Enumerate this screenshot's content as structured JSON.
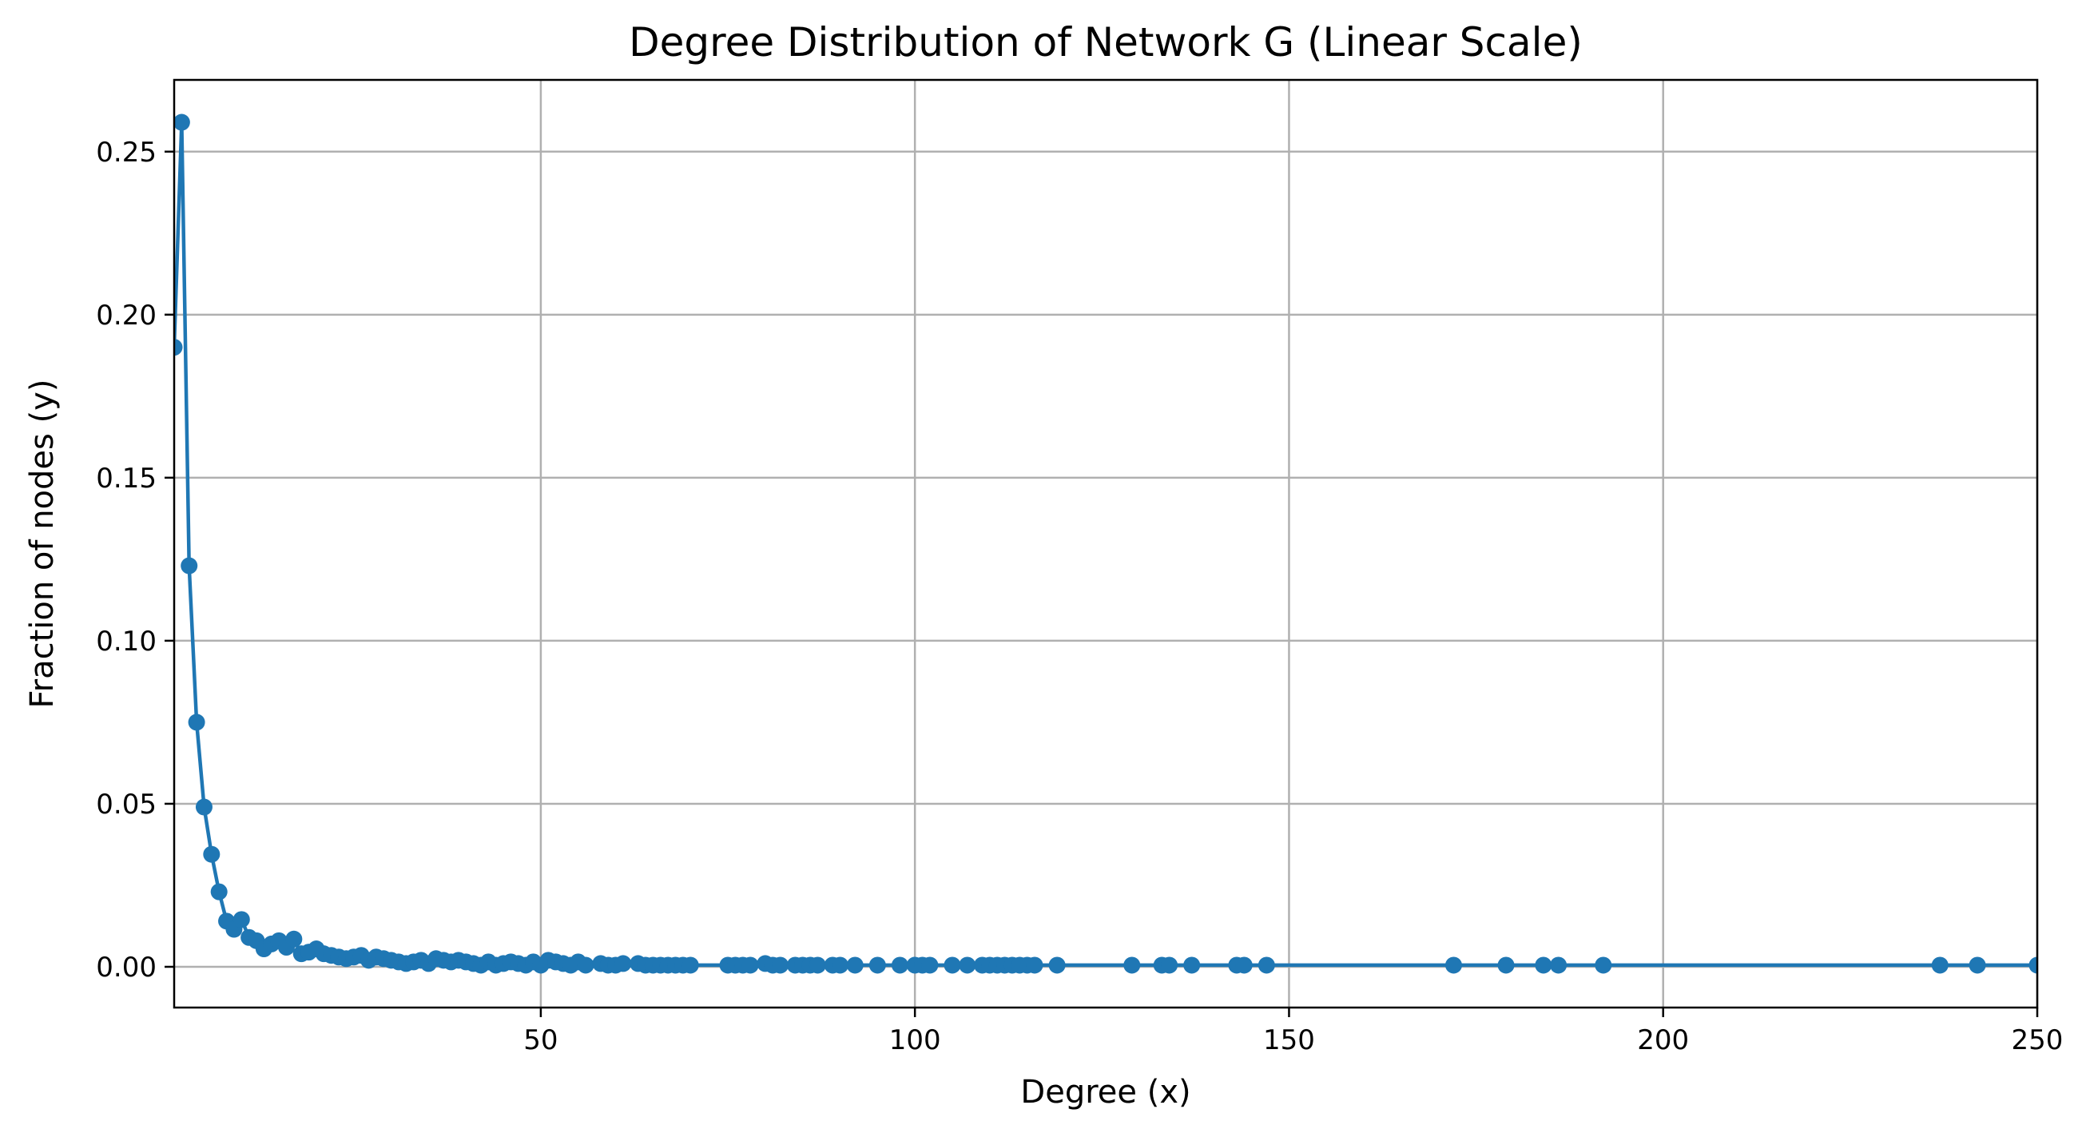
{
  "chart_data": {
    "type": "line",
    "title": "Degree Distribution of Network G (Linear Scale)",
    "xlabel": "Degree (x)",
    "ylabel": "Fraction of nodes (y)",
    "xlim": [
      1,
      250
    ],
    "ylim": [
      -0.0125,
      0.272
    ],
    "xticks": [
      50,
      100,
      150,
      200,
      250
    ],
    "xtick_labels": [
      "50",
      "100",
      "150",
      "200",
      "250"
    ],
    "yticks": [
      0,
      0.05,
      0.1,
      0.15,
      0.2,
      0.25
    ],
    "ytick_labels": [
      "0.00",
      "0.05",
      "0.10",
      "0.15",
      "0.20",
      "0.25"
    ],
    "grid": true,
    "marker": "circle",
    "color": "#1f77b4",
    "series": [
      {
        "x": [
          1,
          2,
          3,
          4,
          5,
          6,
          7,
          8,
          9,
          10,
          11,
          12,
          13,
          14,
          15,
          16,
          17,
          18,
          19,
          20,
          21,
          22,
          23,
          24,
          25,
          26,
          27,
          28,
          29,
          30,
          31,
          32,
          33,
          34,
          35,
          36,
          37,
          38,
          39,
          40,
          41,
          42,
          43,
          44,
          45,
          46,
          47,
          48,
          49,
          50,
          51,
          52,
          53,
          54,
          55,
          56,
          58,
          59,
          60,
          61,
          63,
          64,
          65,
          66,
          67,
          68,
          69,
          70,
          75,
          76,
          77,
          78,
          80,
          81,
          82,
          84,
          85,
          86,
          87,
          89,
          90,
          92,
          95,
          98,
          100,
          101,
          102,
          105,
          107,
          109,
          110,
          111,
          112,
          113,
          114,
          115,
          116,
          119,
          129,
          133,
          134,
          137,
          143,
          144,
          147,
          172,
          179,
          184,
          186,
          192,
          237,
          242,
          250
        ],
        "y": [
          0.19,
          0.259,
          0.123,
          0.075,
          0.049,
          0.0345,
          0.023,
          0.014,
          0.0115,
          0.0145,
          0.009,
          0.008,
          0.0055,
          0.007,
          0.008,
          0.006,
          0.0085,
          0.004,
          0.0045,
          0.0055,
          0.004,
          0.0035,
          0.003,
          0.0025,
          0.003,
          0.0035,
          0.002,
          0.003,
          0.0025,
          0.002,
          0.0015,
          0.001,
          0.0015,
          0.002,
          0.001,
          0.0025,
          0.002,
          0.0015,
          0.002,
          0.0015,
          0.001,
          0.0005,
          0.0015,
          0.0005,
          0.001,
          0.0015,
          0.001,
          0.0005,
          0.0015,
          0.0005,
          0.002,
          0.0015,
          0.001,
          0.0005,
          0.0015,
          0.0005,
          0.001,
          0.0005,
          0.0005,
          0.001,
          0.001,
          0.0005,
          0.0005,
          0.0005,
          0.0005,
          0.0005,
          0.0005,
          0.0005,
          0.0005,
          0.0005,
          0.0005,
          0.0005,
          0.001,
          0.0005,
          0.0005,
          0.0005,
          0.0005,
          0.0005,
          0.0005,
          0.0005,
          0.0005,
          0.0005,
          0.0005,
          0.0005,
          0.0005,
          0.0005,
          0.0005,
          0.0005,
          0.0005,
          0.0005,
          0.0005,
          0.0005,
          0.0005,
          0.0005,
          0.0005,
          0.0005,
          0.0005,
          0.0005,
          0.0005,
          0.0005,
          0.0005,
          0.0005,
          0.0005,
          0.0005,
          0.0005,
          0.0005,
          0.0005,
          0.0005,
          0.0005,
          0.0005,
          0.0005,
          0.0005,
          0.0005
        ]
      }
    ]
  }
}
